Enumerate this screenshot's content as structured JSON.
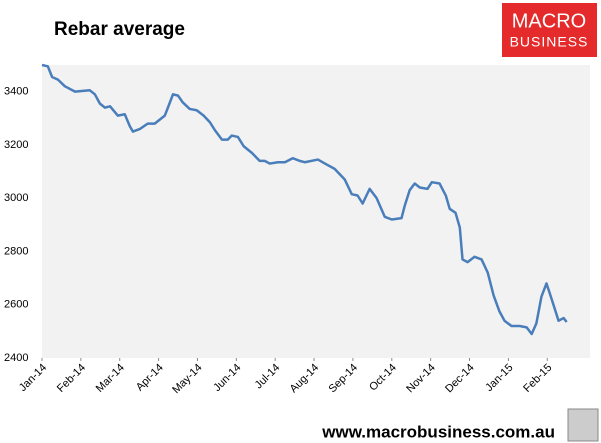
{
  "chart_data": {
    "type": "line",
    "title": "Rebar average",
    "x": [
      0,
      0.15,
      0.26,
      0.41,
      0.59,
      0.85,
      1.23,
      1.36,
      1.49,
      1.62,
      1.75,
      1.95,
      2.13,
      2.26,
      2.34,
      2.52,
      2.72,
      2.9,
      3.16,
      3.24,
      3.37,
      3.5,
      3.62,
      3.8,
      3.98,
      4.16,
      4.32,
      4.45,
      4.63,
      4.78,
      4.88,
      5.04,
      5.19,
      5.4,
      5.6,
      5.73,
      5.86,
      6.07,
      6.25,
      6.45,
      6.63,
      6.76,
      7.1,
      7.28,
      7.53,
      7.79,
      7.97,
      8.12,
      8.25,
      8.43,
      8.61,
      8.82,
      9.0,
      9.25,
      9.33,
      9.46,
      9.59,
      9.72,
      9.92,
      10.03,
      10.23,
      10.39,
      10.49,
      10.64,
      10.75,
      10.82,
      10.95,
      11.13,
      11.31,
      11.47,
      11.62,
      11.77,
      11.9,
      12.08,
      12.29,
      12.47,
      12.6,
      12.72,
      12.85,
      12.98,
      13.06,
      13.16,
      13.29,
      13.42,
      13.5
    ],
    "series": [
      {
        "color": "#4a7ebb",
        "values": [
          3500,
          3495,
          3455,
          3445,
          3420,
          3400,
          3405,
          3390,
          3355,
          3340,
          3345,
          3310,
          3315,
          3270,
          3250,
          3260,
          3280,
          3280,
          3310,
          3340,
          3390,
          3385,
          3360,
          3335,
          3330,
          3310,
          3285,
          3255,
          3220,
          3220,
          3235,
          3230,
          3195,
          3170,
          3140,
          3140,
          3130,
          3135,
          3135,
          3150,
          3140,
          3135,
          3145,
          3130,
          3110,
          3070,
          3015,
          3010,
          2980,
          3035,
          3000,
          2930,
          2920,
          2925,
          2970,
          3030,
          3055,
          3040,
          3035,
          3060,
          3055,
          3010,
          2960,
          2945,
          2890,
          2770,
          2760,
          2780,
          2770,
          2720,
          2635,
          2575,
          2540,
          2520,
          2520,
          2515,
          2490,
          2530,
          2630,
          2680,
          2645,
          2600,
          2540,
          2550,
          2535
        ]
      }
    ],
    "xlim": [
      0,
      14.1
    ],
    "xticks": [
      {
        "value": 0,
        "label": "Jan-14"
      },
      {
        "value": 1,
        "label": "Feb-14"
      },
      {
        "value": 2,
        "label": "Mar-14"
      },
      {
        "value": 3,
        "label": "Apr-14"
      },
      {
        "value": 4,
        "label": "May-14"
      },
      {
        "value": 5,
        "label": "Jun-14"
      },
      {
        "value": 6,
        "label": "Jul-14"
      },
      {
        "value": 7,
        "label": "Aug-14"
      },
      {
        "value": 8,
        "label": "Sep-14"
      },
      {
        "value": 9,
        "label": "Oct-14"
      },
      {
        "value": 10,
        "label": "Nov-14"
      },
      {
        "value": 11,
        "label": "Dec-14"
      },
      {
        "value": 12,
        "label": "Jan-15"
      },
      {
        "value": 13,
        "label": "Feb-15"
      }
    ],
    "ylim": [
      2400,
      3500
    ],
    "yticks": [
      2400,
      2600,
      2800,
      3000,
      3200,
      3400
    ],
    "grid": false
  },
  "logo": {
    "line1": "MACRO",
    "line2": "BUSINESS"
  },
  "footer": "www.macrobusiness.com.au"
}
